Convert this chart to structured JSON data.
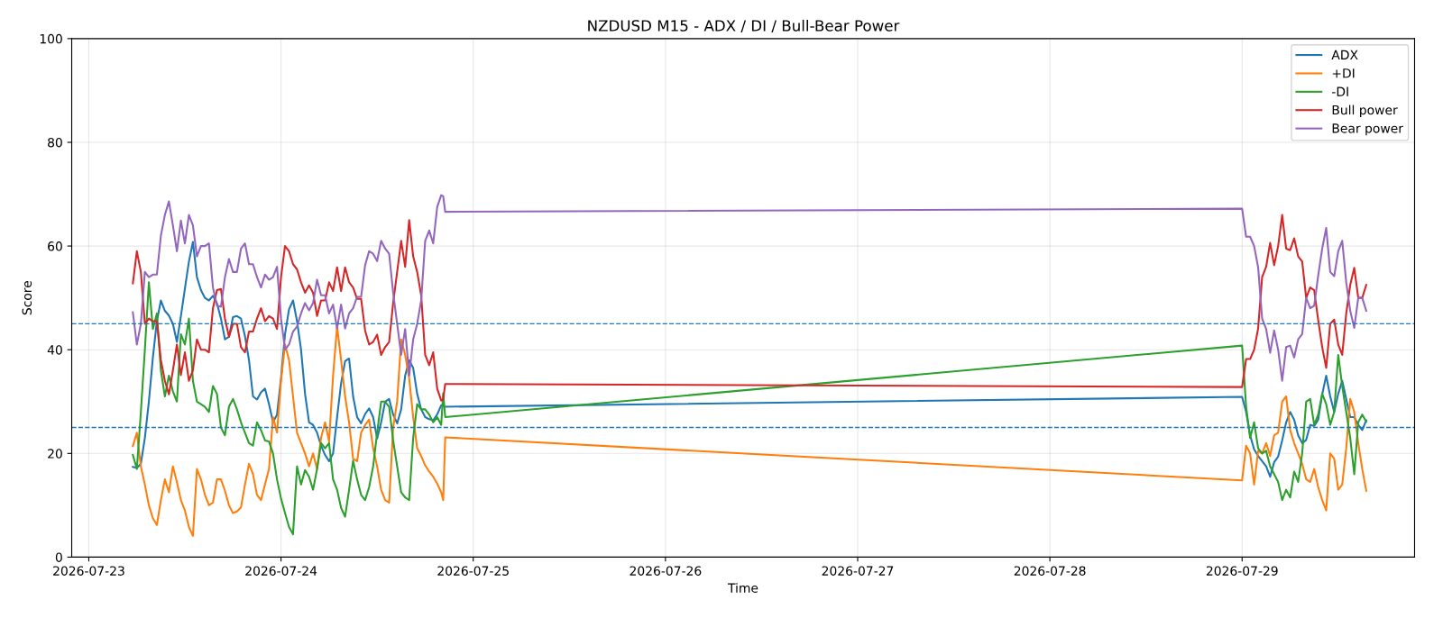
{
  "chart_data": {
    "type": "line",
    "title": "NZDUSD M15 - ADX / DI / Bull-Bear Power",
    "xlabel": "Time",
    "ylabel": "Score",
    "x": [
      "2026-07-23T05:30",
      "2026-07-23T06:00",
      "2026-07-23T06:30",
      "2026-07-23T07:00",
      "2026-07-23T07:30",
      "2026-07-23T08:00",
      "2026-07-23T08:30",
      "2026-07-23T09:00",
      "2026-07-23T09:30",
      "2026-07-23T10:00",
      "2026-07-23T10:30",
      "2026-07-23T11:00",
      "2026-07-23T11:30",
      "2026-07-23T12:00",
      "2026-07-23T12:30",
      "2026-07-23T13:00",
      "2026-07-23T13:30",
      "2026-07-23T14:00",
      "2026-07-23T14:30",
      "2026-07-23T15:00",
      "2026-07-23T15:30",
      "2026-07-23T16:00",
      "2026-07-23T16:30",
      "2026-07-23T17:00",
      "2026-07-23T17:30",
      "2026-07-23T18:00",
      "2026-07-23T18:30",
      "2026-07-23T19:00",
      "2026-07-23T19:30",
      "2026-07-23T20:00",
      "2026-07-23T20:30",
      "2026-07-23T21:00",
      "2026-07-23T21:30",
      "2026-07-23T22:00",
      "2026-07-23T22:30",
      "2026-07-23T23:00",
      "2026-07-23T23:30",
      "2026-07-24T00:00",
      "2026-07-24T00:30",
      "2026-07-24T01:00",
      "2026-07-24T01:30",
      "2026-07-24T02:00",
      "2026-07-24T02:30",
      "2026-07-24T03:00",
      "2026-07-24T03:30",
      "2026-07-24T04:00",
      "2026-07-24T04:30",
      "2026-07-24T05:00",
      "2026-07-24T05:30",
      "2026-07-24T06:00",
      "2026-07-24T06:30",
      "2026-07-24T07:00",
      "2026-07-24T07:30",
      "2026-07-24T08:00",
      "2026-07-24T08:30",
      "2026-07-24T09:00",
      "2026-07-24T09:30",
      "2026-07-24T10:00",
      "2026-07-24T10:30",
      "2026-07-24T11:00",
      "2026-07-24T11:30",
      "2026-07-24T12:00",
      "2026-07-24T12:30",
      "2026-07-24T13:00",
      "2026-07-24T13:30",
      "2026-07-24T14:00",
      "2026-07-24T14:30",
      "2026-07-24T15:00",
      "2026-07-24T15:30",
      "2026-07-24T16:00",
      "2026-07-24T16:30",
      "2026-07-24T17:00",
      "2026-07-24T17:30",
      "2026-07-24T18:00",
      "2026-07-24T18:30",
      "2026-07-24T19:00",
      "2026-07-24T19:30",
      "2026-07-24T20:00",
      "2026-07-24T20:15",
      "2026-07-24T20:30",
      "2026-07-29T00:00",
      "2026-07-29T00:30",
      "2026-07-29T01:00",
      "2026-07-29T01:30",
      "2026-07-29T02:00",
      "2026-07-29T02:30",
      "2026-07-29T03:00",
      "2026-07-29T03:30",
      "2026-07-29T04:00",
      "2026-07-29T04:30",
      "2026-07-29T05:00",
      "2026-07-29T05:30",
      "2026-07-29T06:00",
      "2026-07-29T06:30",
      "2026-07-29T07:00",
      "2026-07-29T07:30",
      "2026-07-29T08:00",
      "2026-07-29T08:30",
      "2026-07-29T09:00",
      "2026-07-29T09:30",
      "2026-07-29T10:00",
      "2026-07-29T10:30",
      "2026-07-29T11:00",
      "2026-07-29T11:30",
      "2026-07-29T12:00",
      "2026-07-29T12:30",
      "2026-07-29T13:00",
      "2026-07-29T13:30",
      "2026-07-29T14:00",
      "2026-07-29T14:30",
      "2026-07-29T15:00",
      "2026-07-29T15:30"
    ],
    "series": [
      {
        "name": "ADX",
        "color": "#1f77b4",
        "values": [
          17.4,
          17.2,
          18,
          23,
          30,
          38.5,
          45.5,
          49.5,
          47.5,
          46.6,
          45,
          41.5,
          46.5,
          51.8,
          57,
          60.8,
          54,
          51.5,
          50,
          49.5,
          50.4,
          49,
          46,
          42,
          42.5,
          46.3,
          46.5,
          46,
          42.6,
          38,
          31,
          30.4,
          31.8,
          32.5,
          29.5,
          26,
          27.5,
          34.5,
          43,
          47.8,
          49.5,
          45.5,
          40,
          31.5,
          26,
          25.5,
          24,
          21.5,
          19.7,
          18.5,
          20,
          27,
          33.5,
          37.8,
          38.3,
          31,
          27,
          25.8,
          27.6,
          28.7,
          27,
          22.9,
          26,
          30,
          30.5,
          27.5,
          25.8,
          28.5,
          35,
          38,
          36.5,
          31.5,
          28.5,
          27,
          26.6,
          26.4,
          27.5,
          29.3,
          29.3,
          29,
          30.9,
          28,
          23.5,
          20.8,
          19.5,
          18.5,
          17.5,
          15.5,
          18.3,
          19.4,
          22.5,
          26,
          28,
          26.5,
          23.5,
          22,
          22.6,
          25.5,
          25.3,
          26.5,
          31.4,
          35,
          31,
          28,
          31.5,
          34,
          30.5,
          27,
          27,
          25.5,
          24.5,
          26.4
        ]
      },
      {
        "name": "+DI",
        "color": "#ff7f0e",
        "values": [
          21.4,
          24,
          17.5,
          14,
          10,
          7.5,
          6.2,
          11,
          15,
          12.5,
          17.5,
          14.5,
          11,
          9,
          5.8,
          4.1,
          17,
          15,
          12,
          10,
          10.5,
          15,
          15,
          12.8,
          10,
          8.5,
          8.8,
          9.6,
          14,
          18,
          16,
          12,
          11,
          14,
          17,
          27,
          24,
          34,
          41,
          38,
          31,
          24,
          22,
          20,
          17.5,
          20,
          17,
          23,
          26,
          22.3,
          35,
          44.5,
          38,
          31,
          26,
          19,
          18.5,
          24,
          25.5,
          26.5,
          21,
          17.5,
          13,
          11,
          10.5,
          25,
          30,
          42,
          39,
          34.5,
          27,
          21,
          19.5,
          17.7,
          16.5,
          15.5,
          14.2,
          12.5,
          11,
          23.1,
          14.8,
          21.5,
          20,
          14,
          20.5,
          20,
          22,
          19.5,
          23.5,
          24,
          30,
          31,
          24.5,
          22,
          20,
          18,
          15,
          14.5,
          17,
          13.5,
          11,
          9,
          20,
          19,
          13,
          14,
          21,
          30.5,
          28,
          22,
          17,
          12.8
        ]
      },
      {
        "name": "-DI",
        "color": "#2ca02c",
        "values": [
          19.7,
          17,
          28,
          40,
          53,
          44,
          47,
          36,
          31,
          35,
          32,
          30,
          43,
          41,
          46,
          34,
          30,
          29.5,
          29,
          28,
          33,
          31.5,
          25,
          23.5,
          29,
          30.5,
          28.5,
          26,
          24,
          22,
          21.5,
          26,
          24.5,
          22.5,
          22.3,
          20,
          15,
          11.3,
          8.5,
          5.8,
          4.4,
          17.5,
          14,
          16.8,
          15.5,
          13,
          17,
          22,
          21,
          22,
          15,
          13,
          9.5,
          7.8,
          13,
          18.6,
          15,
          12,
          11,
          13.5,
          17.5,
          24,
          30,
          30,
          29,
          22.5,
          17.5,
          12.5,
          11.5,
          11,
          23,
          29.5,
          28.5,
          28.5,
          27.5,
          26,
          27,
          25.5,
          31.6,
          27,
          40.8,
          29,
          23,
          26,
          21,
          20,
          20.5,
          17.5,
          16,
          14.5,
          11,
          13,
          11.5,
          16.5,
          14.5,
          20,
          30,
          30.5,
          25.5,
          27.5,
          31.5,
          29.5,
          25.5,
          28,
          39,
          33,
          28,
          23,
          16,
          26,
          27.5,
          26.1
        ]
      },
      {
        "name": "Bull power",
        "color": "#d62728",
        "values": [
          52.8,
          59,
          55,
          45,
          46,
          45.5,
          45.5,
          38,
          34,
          31.4,
          36,
          41,
          35.1,
          39.5,
          34,
          36,
          42,
          40,
          40,
          39.5,
          48,
          51.5,
          51.7,
          46,
          42.5,
          45,
          45,
          40.5,
          39.5,
          43.5,
          43.5,
          46,
          48,
          45.5,
          46.5,
          46,
          44,
          54,
          60,
          59,
          56.5,
          55.5,
          53,
          51,
          52.4,
          51,
          46.5,
          49.5,
          49.5,
          53,
          51.3,
          55.9,
          51.3,
          55.9,
          53,
          52,
          49.8,
          49.8,
          43.7,
          41,
          41.5,
          42.9,
          39,
          40.5,
          41.5,
          49,
          55,
          61,
          56,
          65,
          58,
          55,
          50.5,
          39,
          37,
          39.5,
          32.5,
          30.2,
          30.4,
          33.4,
          32.8,
          38.2,
          38.2,
          40,
          44.1,
          54,
          56,
          60.6,
          56.3,
          60,
          66,
          59.5,
          59.2,
          61.5,
          58,
          57,
          50,
          52,
          51.5,
          45.7,
          40.5,
          36.5,
          45,
          45.8,
          41,
          39,
          47,
          52.5,
          55.8,
          50,
          50,
          52.5
        ]
      },
      {
        "name": "Bear power",
        "color": "#9467bd",
        "values": [
          47.2,
          41,
          45,
          55,
          54,
          54.5,
          54.5,
          62,
          66,
          68.6,
          64,
          59,
          64.9,
          60.5,
          66,
          64,
          58,
          60,
          60,
          60.5,
          52,
          48.5,
          48.3,
          54,
          57.5,
          55,
          55,
          59.5,
          60.5,
          56.5,
          56.5,
          54,
          52,
          54.5,
          53.5,
          54,
          56,
          46,
          40,
          41,
          43.5,
          44.5,
          47,
          49,
          47.6,
          49,
          53.5,
          50.5,
          50.5,
          47,
          48.7,
          44.1,
          48.7,
          44.1,
          47,
          48,
          50.2,
          50.2,
          56.3,
          59,
          58.5,
          57.1,
          61,
          59.5,
          58.5,
          51,
          45,
          39,
          44,
          35,
          42,
          45,
          49.5,
          61,
          63,
          60.5,
          67.5,
          69.8,
          69.6,
          66.6,
          67.2,
          61.8,
          61.8,
          60,
          55.9,
          46,
          44,
          39.4,
          43.7,
          40,
          34,
          40.5,
          40.8,
          38.5,
          42,
          43,
          50,
          48,
          48.5,
          54.3,
          59.5,
          63.5,
          55,
          54.2,
          59,
          61,
          53,
          47.5,
          44.2,
          50,
          50,
          47.5
        ]
      }
    ],
    "xlim": [
      "2026-07-22T21:52",
      "2026-07-29T21:32"
    ],
    "xticks": [
      "2026-07-23",
      "2026-07-24",
      "2026-07-25",
      "2026-07-26",
      "2026-07-27",
      "2026-07-28",
      "2026-07-29"
    ],
    "ylim": [
      0,
      100
    ],
    "yticks": [
      0,
      20,
      40,
      60,
      80,
      100
    ],
    "ref_lines": [
      {
        "axis": "y",
        "value": 45,
        "color": "#1f77b4",
        "line_style": "dashed"
      },
      {
        "axis": "y",
        "value": 25,
        "color": "#1f77b4",
        "line_style": "dashed"
      }
    ],
    "grid": true,
    "legend": "top right"
  }
}
